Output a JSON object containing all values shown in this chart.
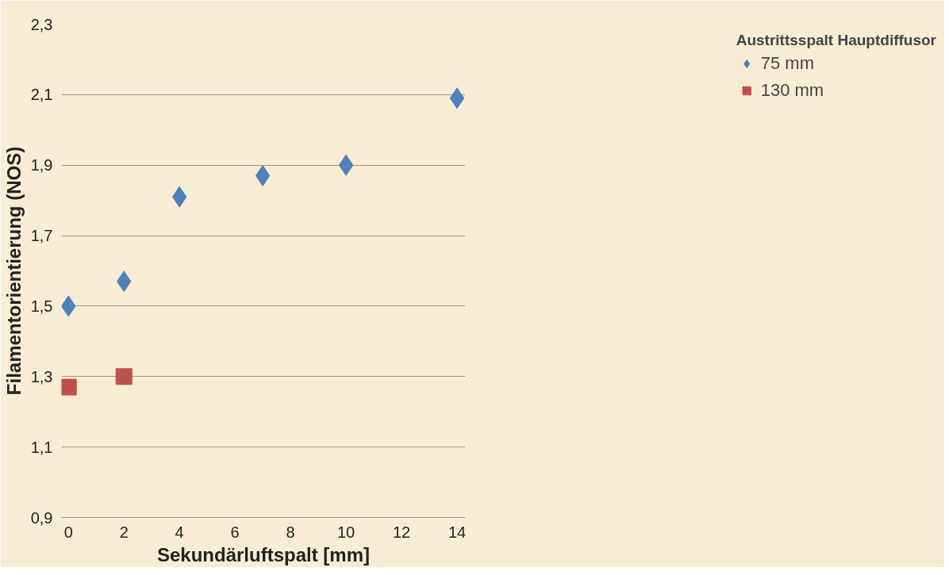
{
  "chart_data": {
    "type": "scatter",
    "xlabel": "Sekundärluftspalt [mm]",
    "ylabel": "Filamentorientierung (NOS)",
    "legend_title": "Austrittsspalt Hauptdiffusor",
    "series": [
      {
        "name": "75 mm",
        "color": "#4f81bd",
        "marker": "diamond",
        "x": [
          0,
          2,
          4,
          7,
          10,
          14
        ],
        "values": [
          1.5,
          1.57,
          1.81,
          1.87,
          1.9,
          2.09
        ]
      },
      {
        "name": "130 mm",
        "color": "#c0504d",
        "marker": "square",
        "x": [
          0,
          2
        ],
        "values": [
          1.27,
          1.3
        ]
      }
    ],
    "xlim": [
      -0.25,
      14.3
    ],
    "xticks": [
      0,
      2,
      4,
      6,
      8,
      10,
      12,
      14
    ],
    "ylim": [
      0.9,
      2.3
    ],
    "yticks": [
      {
        "value": 0.9,
        "label": "0,9"
      },
      {
        "value": 1.1,
        "label": "1,1"
      },
      {
        "value": 1.3,
        "label": "1,3"
      },
      {
        "value": 1.5,
        "label": "1,5"
      },
      {
        "value": 1.7,
        "label": "1,7"
      },
      {
        "value": 1.9,
        "label": "1,9"
      },
      {
        "value": 2.1,
        "label": "2,1"
      },
      {
        "value": 2.3,
        "label": "2,3"
      }
    ],
    "grid": "y",
    "legend": "right"
  }
}
